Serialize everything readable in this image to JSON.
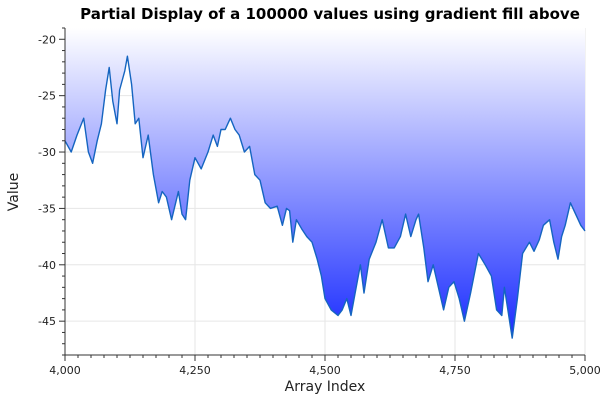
{
  "chart_data": {
    "type": "area",
    "title": "Partial Display of a 100000 values using gradient fill above",
    "xlabel": "Array Index",
    "ylabel": "Value",
    "xlim": [
      4000,
      5000
    ],
    "ylim": [
      -48,
      -19
    ],
    "x_ticks": [
      "4,000",
      "4,250",
      "4,500",
      "4,750",
      "5,000"
    ],
    "y_ticks": [
      "-20",
      "-25",
      "-30",
      "-35",
      "-40",
      "-45"
    ],
    "grid": true,
    "legend": "none",
    "fill": "gradient above the line, from white at top to blue at the line",
    "line_color": "#1565c0",
    "fill_top_color": "#ffffff",
    "fill_bottom_color": "#1a2cff",
    "series": [
      {
        "x": [
          4000,
          4012,
          4023,
          4036,
          4045,
          4053,
          4062,
          4070,
          4078,
          4085,
          4092,
          4100,
          4105,
          4115,
          4120,
          4128,
          4135,
          4142,
          4150,
          4160,
          4170,
          4180,
          4187,
          4195,
          4205,
          4218,
          4225,
          4232,
          4240,
          4250,
          4262,
          4275,
          4285,
          4293,
          4300,
          4308,
          4313,
          4318,
          4327,
          4335,
          4345,
          4355,
          4365,
          4375,
          4385,
          4395,
          4408,
          4418,
          4426,
          4432,
          4438,
          4445,
          4455,
          4465,
          4475,
          4485,
          4493,
          4500,
          4512,
          4525,
          4533,
          4542,
          4550,
          4560,
          4568,
          4575,
          4585,
          4598,
          4610,
          4622,
          4633,
          4645,
          4655,
          4665,
          4675,
          4680,
          4690,
          4698,
          4708,
          4718,
          4728,
          4738,
          4748,
          4758,
          4768,
          4780,
          4795,
          4808,
          4820,
          4830,
          4840,
          4845,
          4850,
          4860,
          4870,
          4880,
          4893,
          4902,
          4912,
          4920,
          4932,
          4940,
          4948,
          4955,
          4962,
          4972,
          4982,
          4992,
          5000
        ],
        "y": [
          -29.0,
          -30.0,
          -28.5,
          -27.0,
          -30.0,
          -31.0,
          -29.0,
          -27.5,
          -24.5,
          -22.5,
          -25.5,
          -27.5,
          -24.5,
          -22.8,
          -21.5,
          -24.0,
          -27.5,
          -27.0,
          -30.5,
          -28.5,
          -32.0,
          -34.5,
          -33.5,
          -34.0,
          -36.0,
          -33.5,
          -35.5,
          -36.0,
          -32.5,
          -30.5,
          -31.5,
          -30.0,
          -28.5,
          -29.5,
          -28.0,
          -28.0,
          -27.5,
          -27.0,
          -28.0,
          -28.5,
          -30.0,
          -29.5,
          -32.0,
          -32.5,
          -34.5,
          -35.0,
          -34.8,
          -36.5,
          -35.0,
          -35.2,
          -38.0,
          -36.0,
          -36.8,
          -37.5,
          -38.0,
          -39.5,
          -41.0,
          -43.0,
          -44.0,
          -44.5,
          -44.0,
          -43.0,
          -44.5,
          -42.0,
          -40.0,
          -42.5,
          -39.5,
          -38.0,
          -36.0,
          -38.5,
          -38.5,
          -37.5,
          -35.5,
          -37.5,
          -36.0,
          -35.5,
          -38.5,
          -41.5,
          -40.0,
          -42.0,
          -44.0,
          -42.0,
          -41.5,
          -43.0,
          -45.0,
          -42.5,
          -39.0,
          -40.0,
          -41.0,
          -44.0,
          -44.5,
          -42.0,
          -43.5,
          -46.5,
          -43.0,
          -39.0,
          -38.0,
          -38.8,
          -37.8,
          -36.5,
          -36.0,
          -38.0,
          -39.5,
          -37.5,
          -36.5,
          -34.5,
          -35.5,
          -36.5,
          -37.0
        ]
      }
    ]
  }
}
